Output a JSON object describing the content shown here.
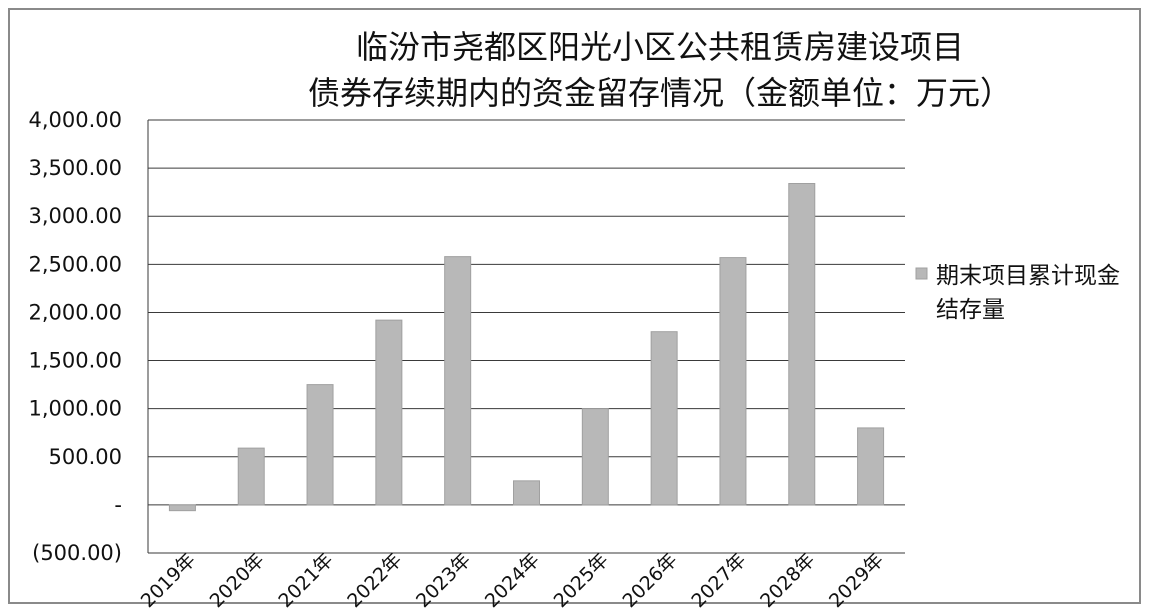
{
  "chart_data": {
    "type": "bar",
    "title": [
      "临汾市尧都区阳光小区公共租赁房建设项目",
      "债券存续期内的资金留存情况（金额单位：万元）"
    ],
    "categories": [
      "2019年",
      "2020年",
      "2021年",
      "2022年",
      "2023年",
      "2024年",
      "2025年",
      "2026年",
      "2027年",
      "2028年",
      "2029年"
    ],
    "series": [
      {
        "name": "期末项目累计现金结存量",
        "values": [
          -60,
          590,
          1250,
          1920,
          2580,
          250,
          1000,
          1800,
          2570,
          3340,
          800
        ]
      }
    ],
    "ylim": [
      -500,
      4000
    ],
    "yticks": [
      -500,
      0,
      500,
      1000,
      1500,
      2000,
      2500,
      3000,
      3500,
      4000
    ],
    "ytick_labels": [
      "(500.00)",
      "-",
      "500.00",
      "1,000.00",
      "1,500.00",
      "2,000.00",
      "2,500.00",
      "3,000.00",
      "3,500.00",
      "4,000.00"
    ],
    "legend": {
      "position": "right",
      "label_lines": [
        "期末项目累计现金",
        "结存量"
      ]
    },
    "grid": true,
    "colors": {
      "bar": "#b8b8b8",
      "bar_edge": "#a0a0a0",
      "grid": "#3a3a3a",
      "text": "#111111"
    }
  }
}
